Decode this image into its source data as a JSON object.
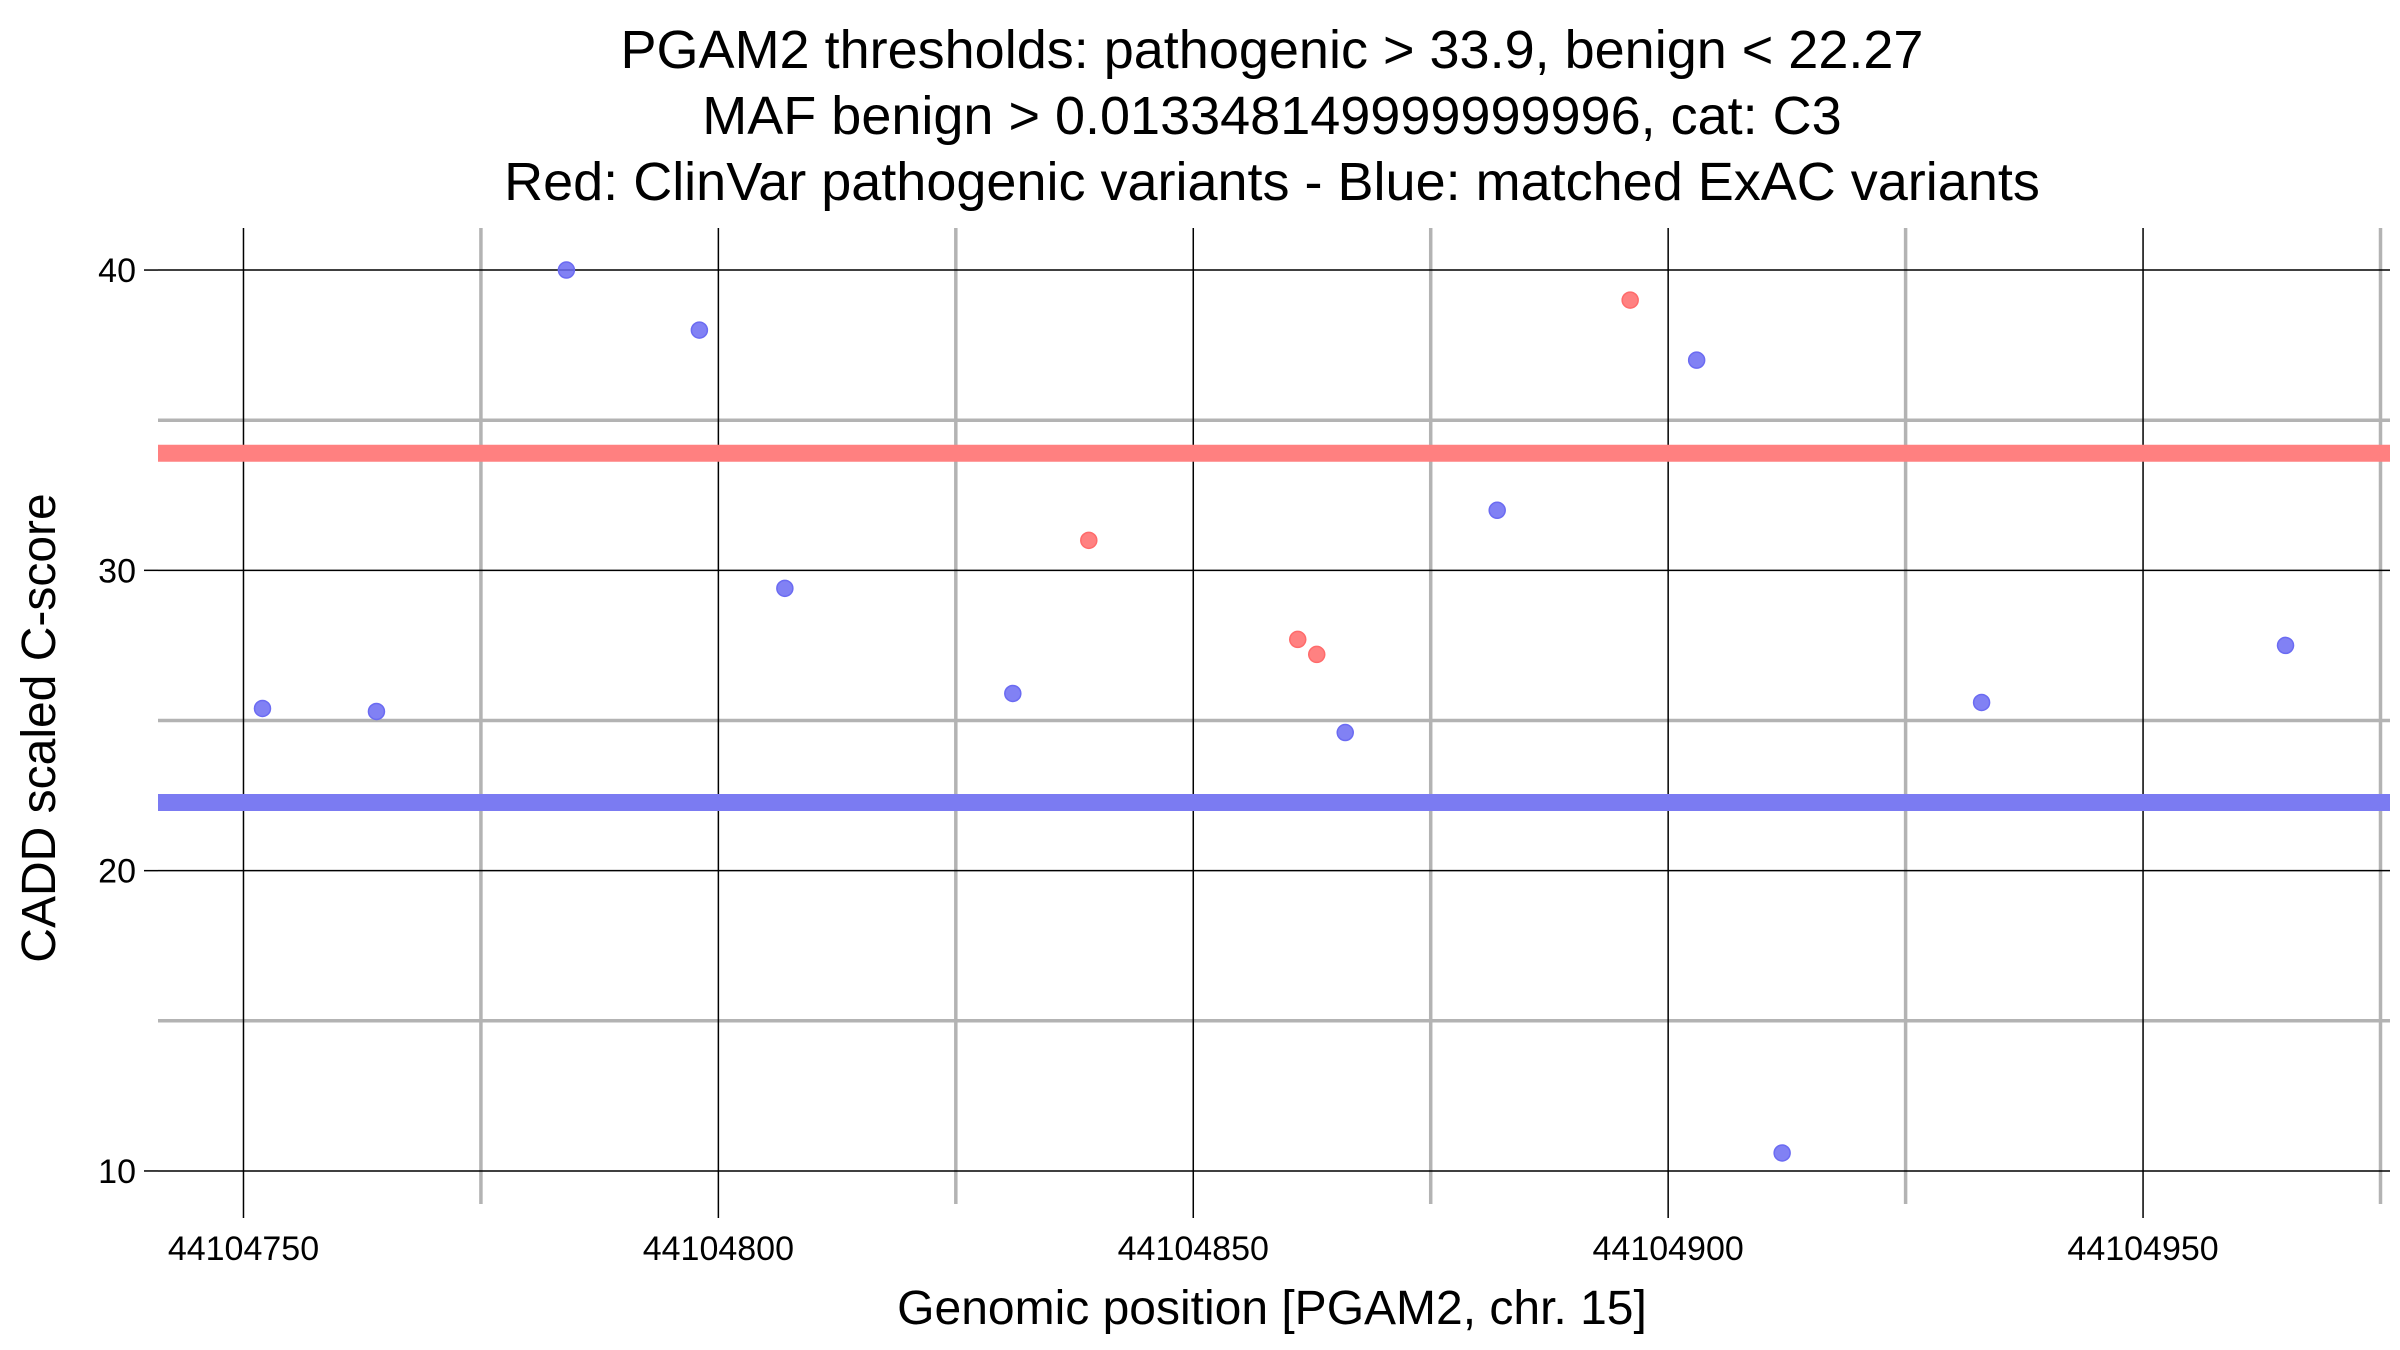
{
  "chart_data": {
    "type": "scatter",
    "title": [
      "PGAM2 thresholds: pathogenic > 33.9, benign < 22.27",
      "MAF benign > 0.013348149999999996, cat: C3",
      "Red: ClinVar pathogenic variants - Blue: matched ExAC variants"
    ],
    "xlabel": "Genomic position [PGAM2, chr. 15]",
    "ylabel": "CADD scaled C-score",
    "xlim": [
      44104741,
      44104976
    ],
    "ylim": [
      8.9,
      41.4
    ],
    "x_major_ticks": [
      44104750,
      44104800,
      44104850,
      44104900,
      44104950
    ],
    "x_tick_labels": [
      "44104750",
      "44104800",
      "44104850",
      "44104900",
      "44104950"
    ],
    "x_minor_ticks": [
      44104775,
      44104825,
      44104875,
      44104925,
      44104975
    ],
    "y_major_ticks": [
      10,
      20,
      30,
      40
    ],
    "y_tick_labels": [
      "10",
      "20",
      "30",
      "40"
    ],
    "y_minor_ticks": [
      15,
      25,
      35
    ],
    "grid": true,
    "thresholds": [
      {
        "name": "pathogenic",
        "value": 33.9,
        "color": "#ff8080"
      },
      {
        "name": "benign",
        "value": 22.27,
        "color": "#7b7bf2"
      }
    ],
    "series": [
      {
        "name": "ClinVar pathogenic variants",
        "color": "#ff6b6b",
        "points": [
          {
            "x": 44104839,
            "y": 31.0
          },
          {
            "x": 44104861,
            "y": 27.7
          },
          {
            "x": 44104863,
            "y": 27.2
          },
          {
            "x": 44104896,
            "y": 39.0
          }
        ]
      },
      {
        "name": "matched ExAC variants",
        "color": "#6b6bf2",
        "points": [
          {
            "x": 44104752,
            "y": 25.4
          },
          {
            "x": 44104764,
            "y": 25.3
          },
          {
            "x": 44104784,
            "y": 40.0
          },
          {
            "x": 44104798,
            "y": 38.0
          },
          {
            "x": 44104807,
            "y": 29.4
          },
          {
            "x": 44104831,
            "y": 25.9
          },
          {
            "x": 44104866,
            "y": 24.6
          },
          {
            "x": 44104882,
            "y": 32.0
          },
          {
            "x": 44104903,
            "y": 37.0
          },
          {
            "x": 44104912,
            "y": 10.6
          },
          {
            "x": 44104933,
            "y": 25.6
          },
          {
            "x": 44104965,
            "y": 27.5
          }
        ]
      }
    ]
  }
}
